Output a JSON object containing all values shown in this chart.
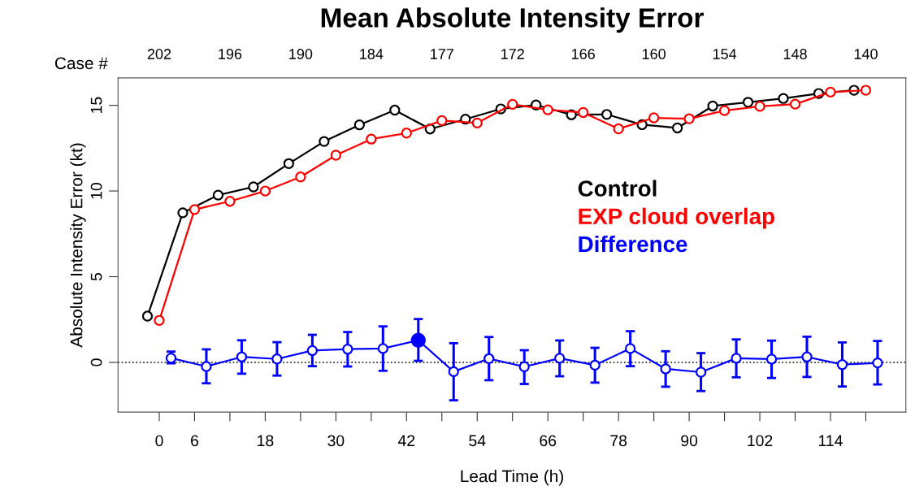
{
  "chart_data": {
    "type": "line",
    "title": "Mean Absolute Intensity Error",
    "xlabel": "Lead Time (h)",
    "ylabel": "Absolute Intensity Error (kt)",
    "annotations": [
      "Case #",
      "202",
      "196",
      "190",
      "184",
      "177",
      "172",
      "166",
      "160",
      "154",
      "148",
      "140"
    ],
    "xlim": [
      -7,
      126.8
    ],
    "ylim": [
      -2.9,
      16.6
    ],
    "xticks": [
      0,
      6,
      {
        "value": 12,
        "label": null
      },
      18,
      {
        "value": 24,
        "label": null
      },
      30,
      {
        "value": 36,
        "label": null
      },
      42,
      {
        "value": 48,
        "label": null
      },
      54,
      {
        "value": 60,
        "label": null
      },
      66,
      {
        "value": 72,
        "label": null
      },
      78,
      {
        "value": 84,
        "label": null
      },
      90,
      {
        "value": 96,
        "label": null
      },
      102,
      {
        "value": 108,
        "label": null
      },
      114,
      {
        "value": 120,
        "label": null
      }
    ],
    "yticks": [
      0,
      5,
      10,
      15
    ],
    "marker": "circle",
    "line_style": "solid",
    "grid": false,
    "legend": "right",
    "ref_lines": [
      {
        "axis": "y",
        "value": 0,
        "label": null,
        "color": "#000000",
        "line_style": "dotted"
      }
    ],
    "series": [
      {
        "name": "Control",
        "color": "#000000",
        "x": [
          -2,
          4,
          10,
          16,
          22,
          28,
          34,
          40,
          46,
          52,
          58,
          64,
          70,
          76,
          82,
          88,
          94,
          100,
          106,
          112,
          118
        ],
        "values": [
          2.7,
          8.73,
          9.76,
          10.24,
          11.6,
          12.89,
          13.86,
          14.72,
          13.62,
          14.19,
          14.79,
          15.02,
          14.45,
          14.47,
          13.87,
          13.68,
          14.96,
          15.18,
          15.4,
          15.69,
          15.88
        ]
      },
      {
        "name": "EXP cloud overlap",
        "color": "#ff0000",
        "x": [
          0,
          6,
          12,
          18,
          24,
          30,
          36,
          42,
          48,
          54,
          60,
          66,
          72,
          78,
          84,
          90,
          96,
          102,
          108,
          114,
          120
        ],
        "values": [
          2.45,
          8.92,
          9.4,
          10.0,
          10.82,
          12.09,
          13.03,
          13.38,
          14.11,
          13.97,
          15.06,
          14.74,
          14.58,
          13.63,
          14.27,
          14.22,
          14.69,
          14.94,
          15.07,
          15.77,
          15.88
        ]
      },
      {
        "name": "Difference",
        "color": "#0000ff",
        "x": [
          2,
          8,
          14,
          20,
          26,
          32,
          38,
          44,
          50,
          56,
          62,
          68,
          74,
          80,
          86,
          92,
          98,
          104,
          110,
          116,
          122
        ],
        "values": [
          0.25,
          -0.24,
          0.32,
          0.2,
          0.69,
          0.77,
          0.81,
          1.29,
          -0.54,
          0.22,
          -0.25,
          0.24,
          -0.16,
          0.81,
          -0.38,
          -0.57,
          0.24,
          0.19,
          0.32,
          -0.13,
          -0.03
        ],
        "errors": [
          [
            -0.06,
            0.63
          ],
          [
            -1.22,
            0.76
          ],
          [
            -0.66,
            1.29
          ],
          [
            -0.77,
            1.18
          ],
          [
            -0.22,
            1.61
          ],
          [
            -0.24,
            1.77
          ],
          [
            -0.49,
            2.1
          ],
          [
            0.09,
            2.53
          ],
          [
            -2.21,
            1.12
          ],
          [
            -1.04,
            1.48
          ],
          [
            -1.26,
            0.71
          ],
          [
            -0.81,
            1.28
          ],
          [
            -1.18,
            0.85
          ],
          [
            -0.22,
            1.82
          ],
          [
            -1.42,
            0.65
          ],
          [
            -1.67,
            0.54
          ],
          [
            -0.87,
            1.34
          ],
          [
            -0.91,
            1.27
          ],
          [
            -0.85,
            1.5
          ],
          [
            -1.41,
            1.17
          ],
          [
            -1.29,
            1.25
          ]
        ]
      },
      {
        "type": "scatter",
        "color": "#0000ff",
        "x": [
          44
        ],
        "values": [
          1.29
        ]
      }
    ]
  }
}
